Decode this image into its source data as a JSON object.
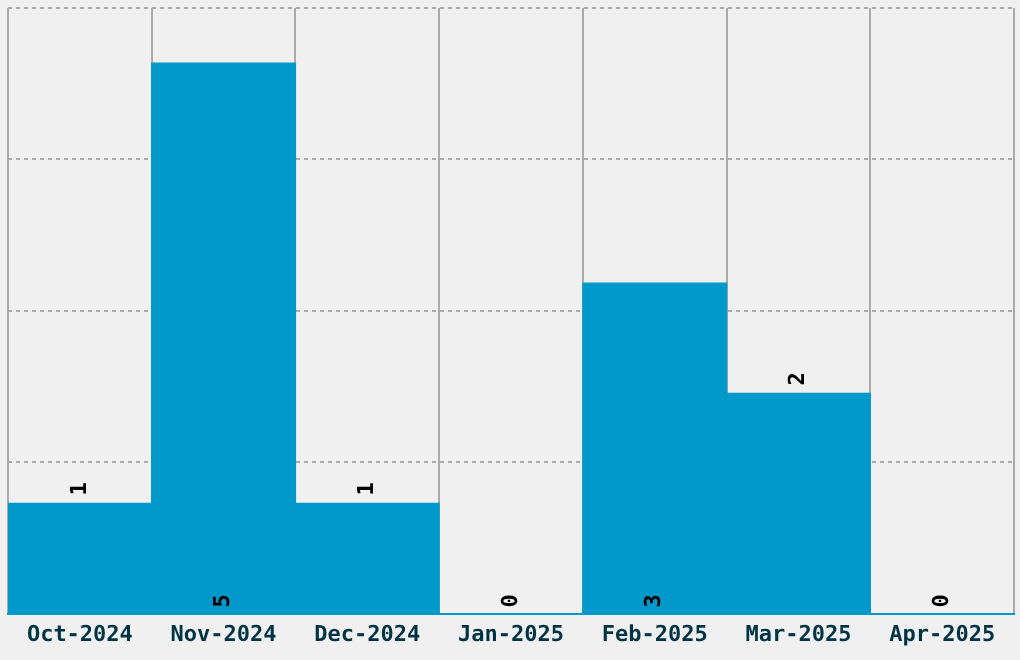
{
  "chart_data": {
    "type": "bar",
    "categories": [
      "Oct-2024",
      "Nov-2024",
      "Dec-2024",
      "Jan-2025",
      "Feb-2025",
      "Mar-2025",
      "Apr-2025"
    ],
    "values": [
      1,
      5,
      1,
      0,
      3,
      2,
      0
    ],
    "color": "#0099cc",
    "ylim": [
      0,
      5.5
    ],
    "yticks": [
      {
        "value": 0,
        "label": null
      },
      {
        "value": 1.375,
        "label": null
      },
      {
        "value": 2.75,
        "label": null
      },
      {
        "value": 4.125,
        "label": null
      },
      {
        "value": 5.5,
        "label": null
      }
    ],
    "tick_labels": "x",
    "grid": true,
    "data_labels": true
  }
}
